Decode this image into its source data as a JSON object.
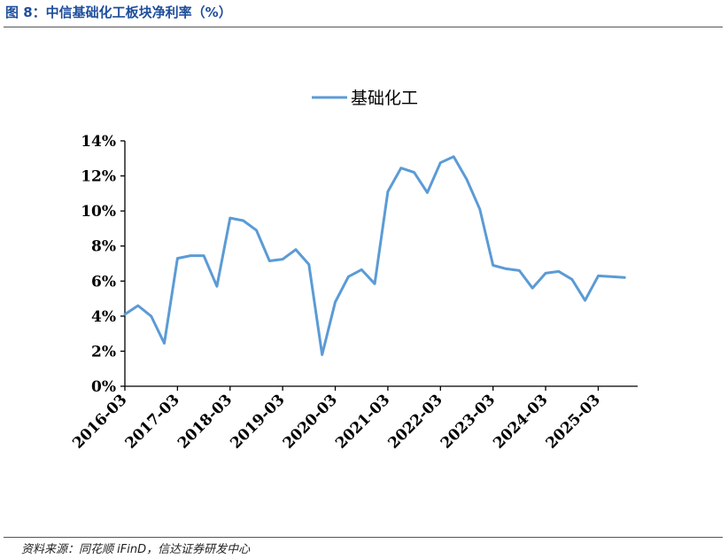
{
  "header": {
    "figure_title": "图 8：中信基础化工板块净利率（%）"
  },
  "footer": {
    "source": "资料来源：同花顺 iFinD，信达证券研发中心"
  },
  "colors": {
    "series_line": "#5b9bd5",
    "axis": "#000000",
    "title": "#1f4e9b"
  },
  "chart_data": {
    "type": "line",
    "title": "",
    "xlabel": "",
    "ylabel": "",
    "ylim": [
      0,
      14
    ],
    "y_ticks": [
      "0%",
      "2%",
      "4%",
      "6%",
      "8%",
      "10%",
      "12%",
      "14%"
    ],
    "x_tick_labels": [
      "2016-03",
      "2017-03",
      "2018-03",
      "2019-03",
      "2020-03",
      "2021-03",
      "2022-03",
      "2023-03",
      "2024-03",
      "2025-03"
    ],
    "grid": false,
    "legend_position": "top-center",
    "x": [
      "2016-03",
      "2016-06",
      "2016-09",
      "2016-12",
      "2017-03",
      "2017-06",
      "2017-09",
      "2017-12",
      "2018-03",
      "2018-06",
      "2018-09",
      "2018-12",
      "2019-03",
      "2019-06",
      "2019-09",
      "2019-12",
      "2020-03",
      "2020-06",
      "2020-09",
      "2020-12",
      "2021-03",
      "2021-06",
      "2021-09",
      "2021-12",
      "2022-03",
      "2022-06",
      "2022-09",
      "2022-12",
      "2023-03",
      "2023-06",
      "2023-09",
      "2023-12",
      "2024-03",
      "2024-06",
      "2024-09",
      "2024-12",
      "2025-03",
      "2025-06",
      "2025-09"
    ],
    "series": [
      {
        "name": "基础化工",
        "values": [
          4.1,
          4.6,
          4.0,
          2.45,
          7.3,
          7.45,
          7.45,
          5.7,
          9.6,
          9.45,
          8.9,
          7.15,
          7.25,
          7.8,
          6.95,
          1.8,
          4.8,
          6.25,
          6.65,
          5.85,
          11.1,
          12.45,
          12.2,
          11.05,
          12.75,
          13.1,
          11.8,
          10.1,
          6.9,
          6.7,
          6.6,
          5.6,
          6.45,
          6.55,
          6.1,
          4.9,
          6.3,
          6.25,
          6.2
        ]
      }
    ]
  }
}
